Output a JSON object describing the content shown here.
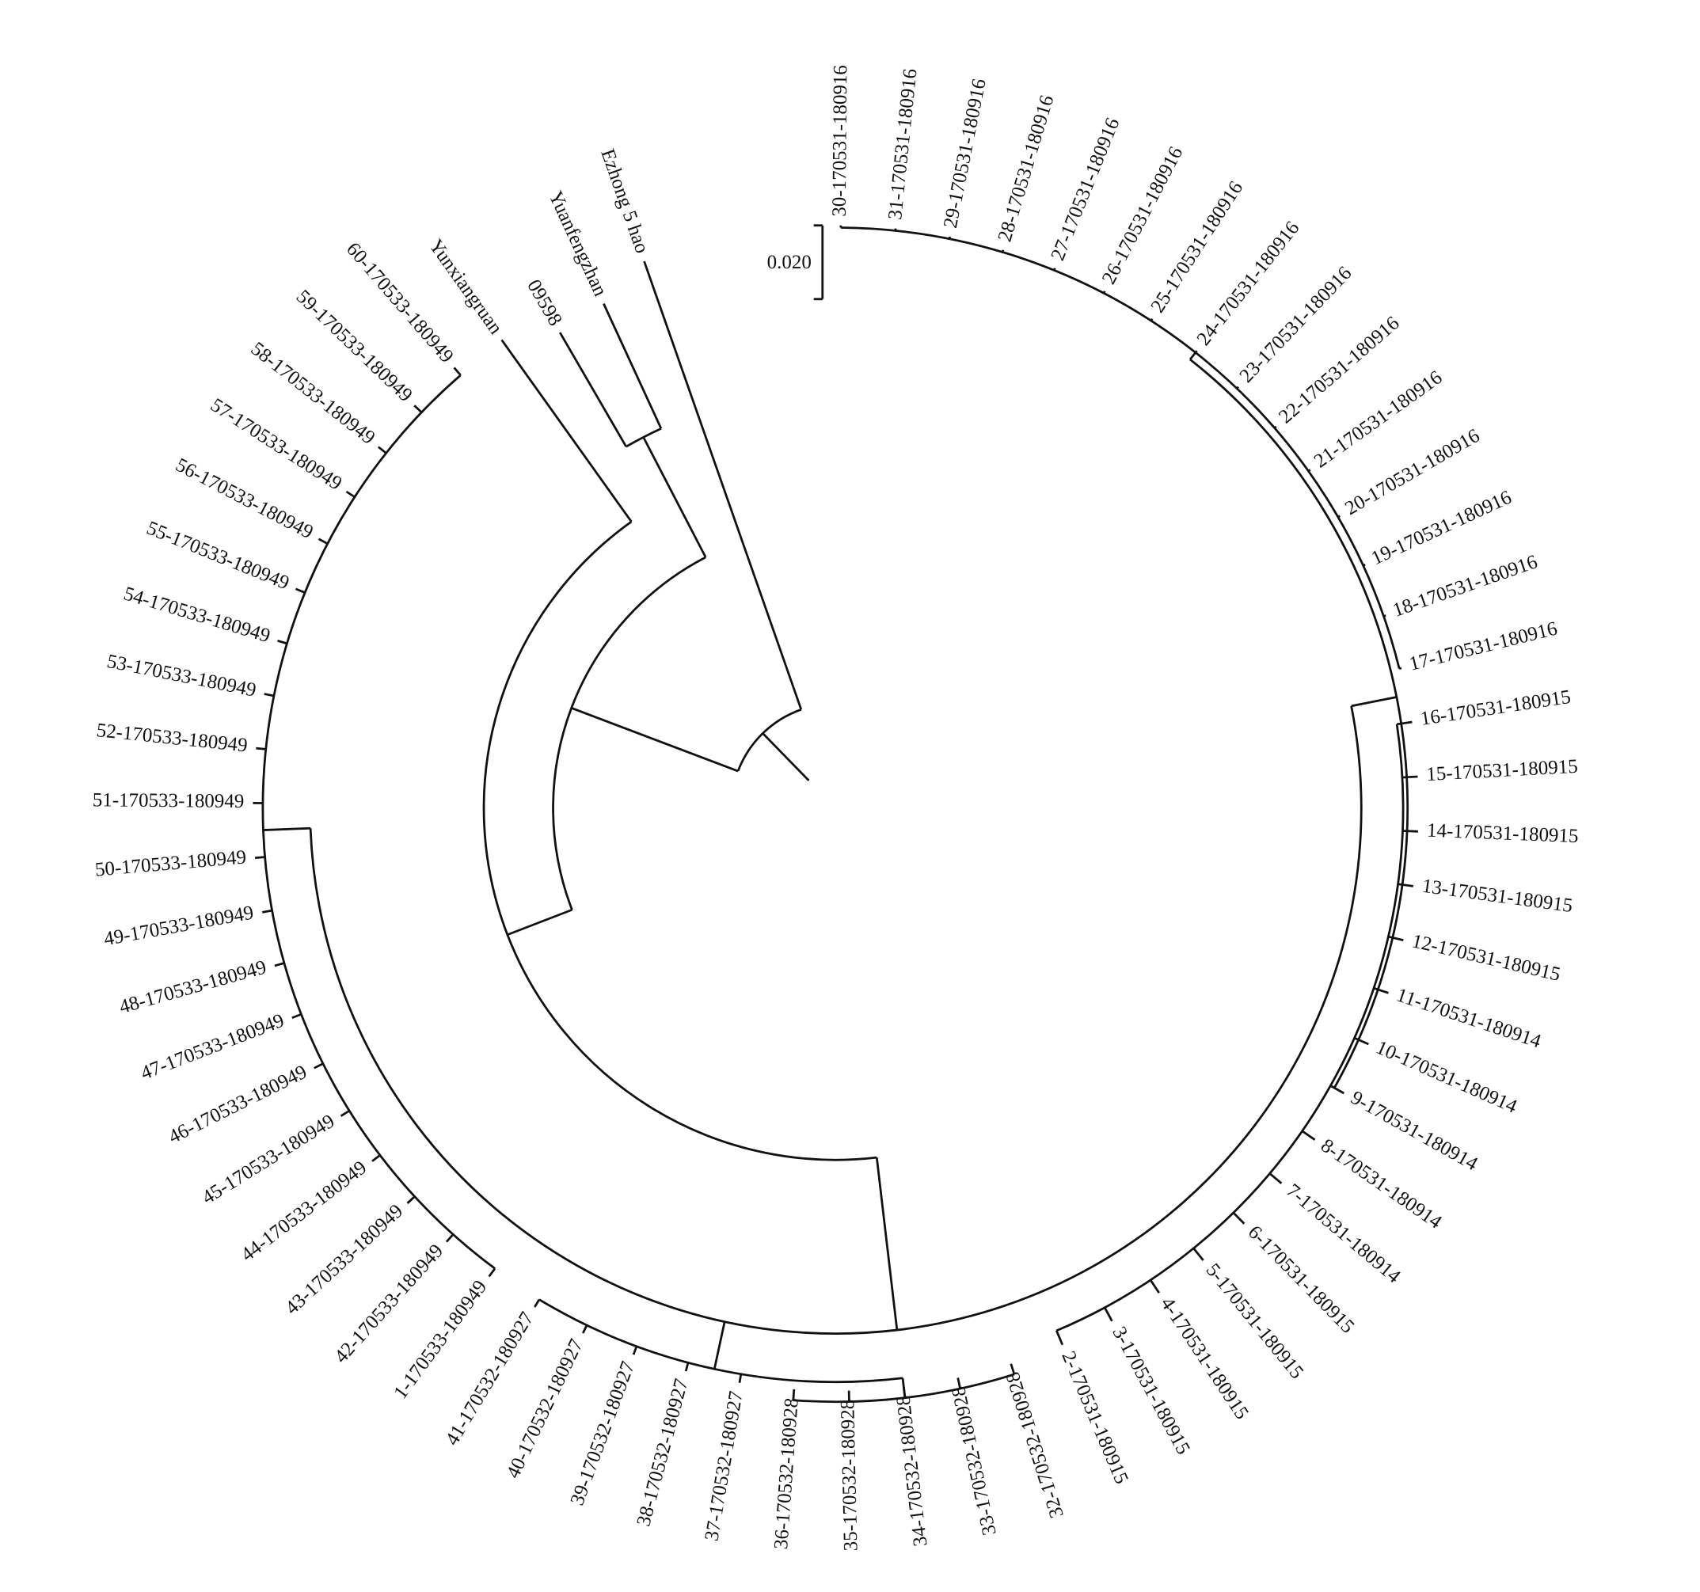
{
  "scale_bar": {
    "label": "0.020"
  },
  "leaves": [
    {
      "label": "30-170531-180916"
    },
    {
      "label": "31-170531-180916"
    },
    {
      "label": "29-170531-180916"
    },
    {
      "label": "28-170531-180916"
    },
    {
      "label": "27-170531-180916"
    },
    {
      "label": "26-170531-180916"
    },
    {
      "label": "25-170531-180916"
    },
    {
      "label": "24-170531-180916"
    },
    {
      "label": "23-170531-180916"
    },
    {
      "label": "22-170531-180916"
    },
    {
      "label": "21-170531-180916"
    },
    {
      "label": "20-170531-180916"
    },
    {
      "label": "19-170531-180916"
    },
    {
      "label": "18-170531-180916"
    },
    {
      "label": "17-170531-180916"
    },
    {
      "label": "16-170531-180915"
    },
    {
      "label": "15-170531-180915"
    },
    {
      "label": "14-170531-180915"
    },
    {
      "label": "13-170531-180915"
    },
    {
      "label": "12-170531-180915"
    },
    {
      "label": "11-170531-180914"
    },
    {
      "label": "10-170531-180914"
    },
    {
      "label": "9-170531-180914"
    },
    {
      "label": "8-170531-180914"
    },
    {
      "label": "7-170531-180914"
    },
    {
      "label": "6-170531-180915"
    },
    {
      "label": "5-170531-180915"
    },
    {
      "label": "4-170531-180915"
    },
    {
      "label": "3-170531-180915"
    },
    {
      "label": "2-170531-180915"
    },
    {
      "label": "32-170532-180928"
    },
    {
      "label": "33-170532-180928"
    },
    {
      "label": "34-170532-180928"
    },
    {
      "label": "35-170532-180928"
    },
    {
      "label": "36-170532-180928"
    },
    {
      "label": "37-170532-180927"
    },
    {
      "label": "38-170532-180927"
    },
    {
      "label": "39-170532-180927"
    },
    {
      "label": "40-170532-180927"
    },
    {
      "label": "41-170532-180927"
    },
    {
      "label": "1-170533-180949"
    },
    {
      "label": "42-170533-180949"
    },
    {
      "label": "43-170533-180949"
    },
    {
      "label": "44-170533-180949"
    },
    {
      "label": "45-170533-180949"
    },
    {
      "label": "46-170533-180949"
    },
    {
      "label": "47-170533-180949"
    },
    {
      "label": "48-170533-180949"
    },
    {
      "label": "49-170533-180949"
    },
    {
      "label": "50-170533-180949"
    },
    {
      "label": "51-170533-180949"
    },
    {
      "label": "52-170533-180949"
    },
    {
      "label": "53-170533-180949"
    },
    {
      "label": "54-170533-180949"
    },
    {
      "label": "55-170533-180949"
    },
    {
      "label": "56-170533-180949"
    },
    {
      "label": "57-170533-180949"
    },
    {
      "label": "58-170533-180949"
    },
    {
      "label": "59-170533-180949"
    },
    {
      "label": "60-170533-180949"
    },
    {
      "label": "Yunxiangruan"
    },
    {
      "label": "09598"
    },
    {
      "label": "Yuanfengzhan"
    },
    {
      "label": "Ezhong 5 hao"
    }
  ]
}
